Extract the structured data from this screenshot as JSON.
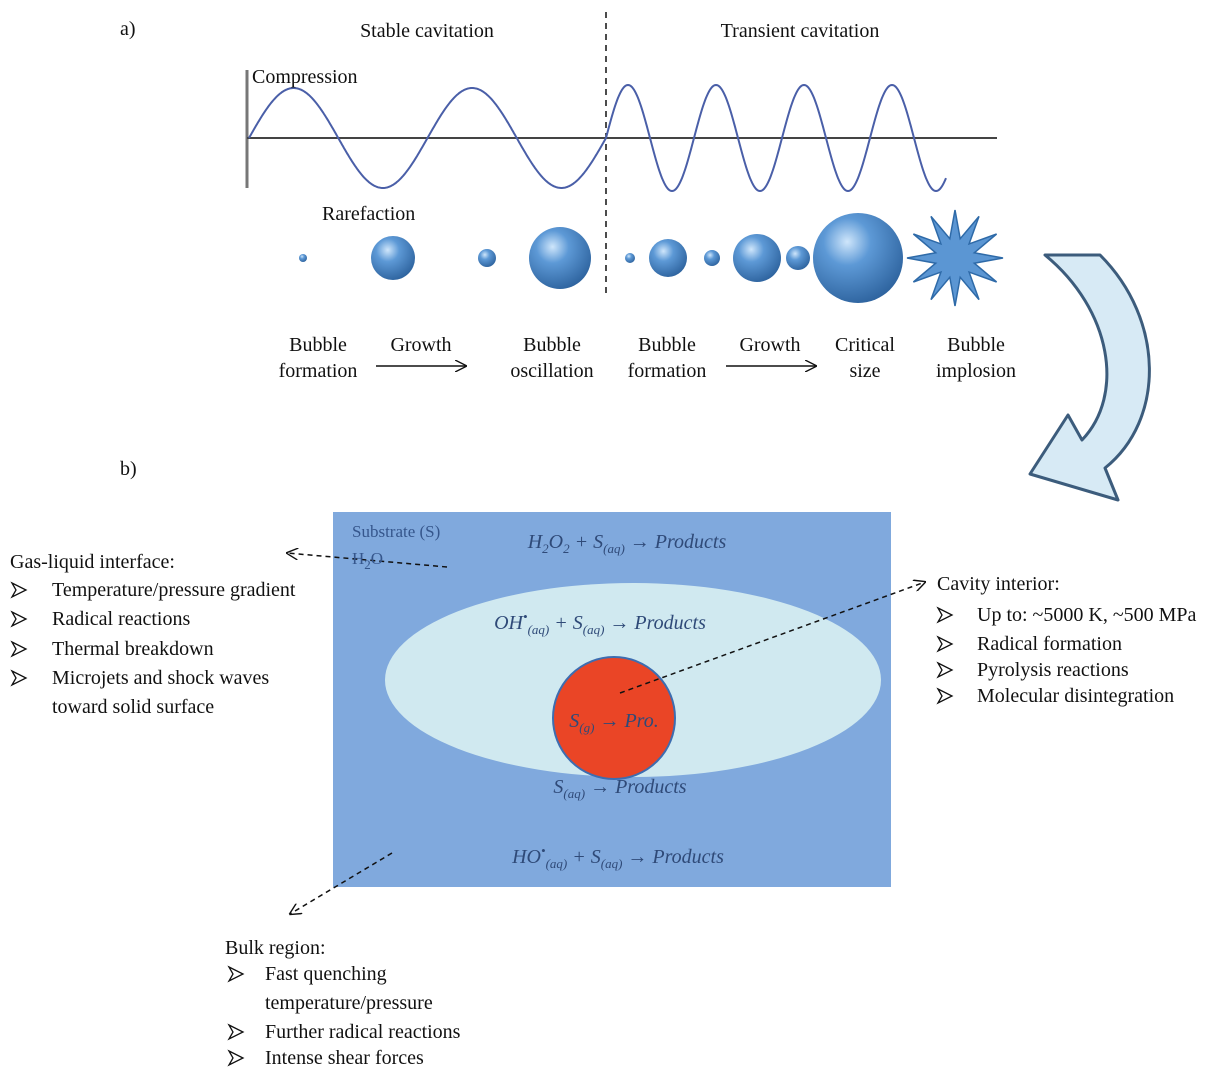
{
  "panel_a": {
    "label": "a)",
    "stable_label": "Stable cavitation",
    "transient_label": "Transient cavitation",
    "compression_label": "Compression",
    "rarefaction_label": "Rarefaction",
    "stages": [
      {
        "lines": [
          "Bubble",
          "formation"
        ]
      },
      {
        "lines": [
          "Growth"
        ]
      },
      {
        "lines": [
          "Bubble",
          "oscillation"
        ]
      },
      {
        "lines": [
          "Bubble",
          "formation"
        ]
      },
      {
        "lines": [
          "Growth"
        ]
      },
      {
        "lines": [
          "Critical",
          "size"
        ]
      },
      {
        "lines": [
          "Bubble",
          "implosion"
        ]
      }
    ]
  },
  "panel_b": {
    "label": "b)",
    "substrate_label": "Substrate (S)",
    "water_label": [
      {
        "text": "H"
      },
      {
        "sub": "2"
      },
      {
        "text": "O"
      }
    ],
    "equations": [
      [
        {
          "text": "H"
        },
        {
          "sub": "2"
        },
        {
          "text": "O"
        },
        {
          "sub": "2"
        },
        {
          "text": " + S"
        },
        {
          "sub": "(aq)"
        },
        {
          "text": " → Products"
        }
      ],
      [
        {
          "text": "OH"
        },
        {
          "sup": "•"
        },
        {
          "sub": "(aq)"
        },
        {
          "text": " + S"
        },
        {
          "sub": "(aq)"
        },
        {
          "text": " → Products"
        }
      ],
      [
        {
          "text": "S"
        },
        {
          "sub": "(g)"
        },
        {
          "text": " → Pro."
        }
      ],
      [
        {
          "text": "S"
        },
        {
          "sub": "(aq)"
        },
        {
          "text": " → Products"
        }
      ],
      [
        {
          "text": "HO"
        },
        {
          "sup": "•"
        },
        {
          "sub": "(aq)"
        },
        {
          "text": " + S"
        },
        {
          "sub": "(aq)"
        },
        {
          "text": " → Products"
        }
      ]
    ],
    "gas_liquid_interface": {
      "title": "Gas-liquid interface:",
      "items": [
        {
          "lines": [
            "Temperature/pressure gradient"
          ]
        },
        {
          "lines": [
            "Radical reactions"
          ]
        },
        {
          "lines": [
            "Thermal breakdown"
          ]
        },
        {
          "lines": [
            "Microjets and shock waves",
            "toward solid surface"
          ]
        }
      ]
    },
    "cavity_interior": {
      "title": "Cavity interior:",
      "items": [
        {
          "lines": [
            "Up to: ~5000 K, ~500 MPa"
          ]
        },
        {
          "lines": [
            "Radical formation"
          ]
        },
        {
          "lines": [
            "Pyrolysis reactions"
          ]
        },
        {
          "lines": [
            "Molecular disintegration"
          ]
        }
      ]
    },
    "bulk_region": {
      "title": "Bulk region:",
      "items": [
        {
          "lines": [
            "Fast quenching",
            "temperature/pressure"
          ]
        },
        {
          "lines": [
            "Further radical reactions"
          ]
        },
        {
          "lines": [
            "Intense shear forces"
          ]
        }
      ]
    }
  }
}
